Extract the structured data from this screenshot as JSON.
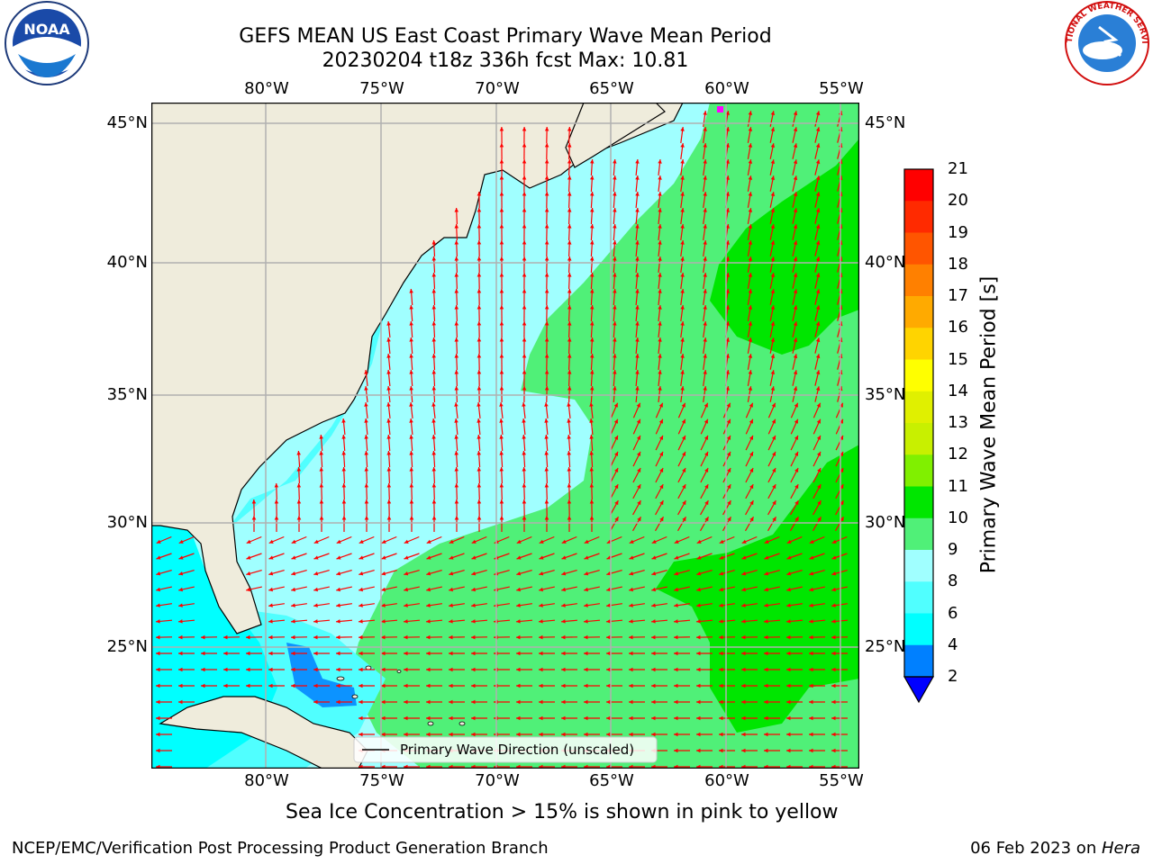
{
  "header": {
    "title_line1": "GEFS MEAN US East Coast Primary Wave Mean Period",
    "title_line2": "20230204 t18z 336h fcst   Max: 10.81"
  },
  "map": {
    "lon_labels": [
      "80°W",
      "75°W",
      "70°W",
      "65°W",
      "60°W",
      "55°W"
    ],
    "lat_labels": [
      "45°N",
      "40°N",
      "35°N",
      "30°N",
      "25°N"
    ],
    "legend_label": "Primary Wave Direction (unscaled)",
    "arrow_color": "#ff0000",
    "land_color": "#efecdc",
    "grid_color": "#b0b0b0"
  },
  "colorbar": {
    "label": "Primary Wave Mean Period [s]",
    "ticks": [
      "21",
      "20",
      "19",
      "18",
      "17",
      "16",
      "15",
      "14",
      "13",
      "12",
      "11",
      "10",
      "9",
      "8",
      "6",
      "4",
      "2"
    ],
    "colors": [
      "#ff0000",
      "#ff2a00",
      "#ff5500",
      "#ff8000",
      "#ffaa00",
      "#ffd400",
      "#ffff00",
      "#e0f000",
      "#c8f000",
      "#80f000",
      "#00e600",
      "#50f078",
      "#a0ffff",
      "#50ffff",
      "#00ffff",
      "#0080ff",
      "#0000ff"
    ]
  },
  "notes": {
    "sea_ice": "Sea Ice Concentration > 15% is shown in pink to yellow"
  },
  "footer": {
    "left": "NCEP/EMC/Verification Post Processing Product Generation Branch",
    "date": "06 Feb 2023 on ",
    "host": "Hera"
  },
  "logos": {
    "noaa_text": "NOAA",
    "nws_text": "NATIONAL WEATHER SERVICE"
  }
}
